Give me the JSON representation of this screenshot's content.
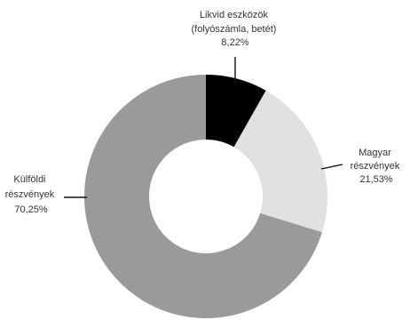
{
  "chart_data": {
    "type": "pie",
    "variant": "donut",
    "start_angle_deg": 0,
    "direction": "clockwise",
    "slices": [
      {
        "label": [
          "Likvid eszközök",
          "(folyószámla, betét)"
        ],
        "value": 8.22,
        "value_label": "8,22%",
        "color": "#000000"
      },
      {
        "label": [
          "Magyar",
          "részvények"
        ],
        "value": 21.53,
        "value_label": "21,53%",
        "color": "#e1e1e1"
      },
      {
        "label": [
          "Külföldi",
          "részvények"
        ],
        "value": 70.25,
        "value_label": "70,25%",
        "color": "#9a9a9a"
      }
    ],
    "legend": "none"
  }
}
